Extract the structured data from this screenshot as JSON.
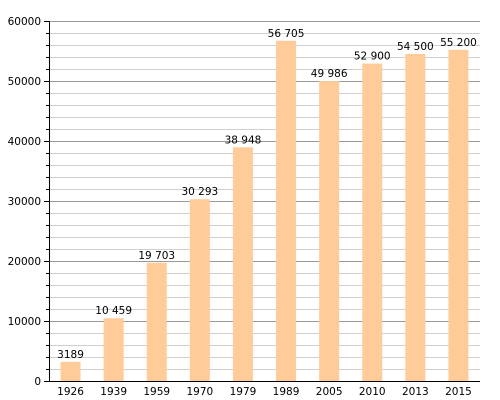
{
  "chart_data": {
    "type": "bar",
    "categories": [
      "1926",
      "1939",
      "1959",
      "1970",
      "1979",
      "1989",
      "2005",
      "2010",
      "2013",
      "2015"
    ],
    "values": [
      3189,
      10459,
      19703,
      30293,
      38948,
      56705,
      49986,
      52900,
      54500,
      55200
    ],
    "data_labels": [
      "3189",
      "10 459",
      "19 703",
      "30 293",
      "38 948",
      "56 705",
      "49 986",
      "52 900",
      "54 500",
      "55 200"
    ],
    "ylim": [
      0,
      60000
    ],
    "yticks": [
      0,
      10000,
      20000,
      30000,
      40000,
      50000,
      60000
    ],
    "ytick_labels": [
      "0",
      "10000",
      "20000",
      "30000",
      "40000",
      "50000",
      "60000"
    ],
    "minor_grid_step": 2000,
    "grid": true,
    "bar_color": "#ffcc99",
    "major_grid_color": "#9a9a9a",
    "minor_grid_color": "#d0d0d0",
    "title": "",
    "xlabel": "",
    "ylabel": ""
  }
}
